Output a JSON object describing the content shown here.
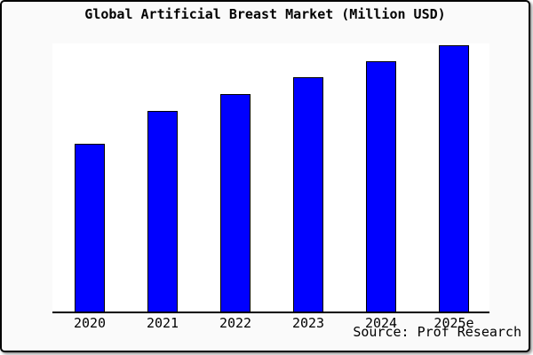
{
  "title": "Global Artificial Breast Market (Million USD)",
  "source_text": "Source: Prof Research",
  "colors": {
    "bar_fill": "#0000FF",
    "bar_border": "#000000",
    "page_background": "#FAFAFA",
    "plot_background": "#FFFFFF",
    "axis": "#000000",
    "frame_border": "#000000",
    "text": "#000000"
  },
  "chart_data": {
    "type": "bar",
    "title": "Global Artificial Breast Market (Million USD)",
    "categories": [
      "2020",
      "2021",
      "2022",
      "2023",
      "2024",
      "2025e"
    ],
    "values": [
      63,
      75.3,
      81.7,
      88,
      94,
      100
    ],
    "units": "relative bar height, indexed to 2025e = 100 (y-axis not labeled in chart)",
    "xlabel": "",
    "ylabel": "",
    "ylim": [
      0,
      100.7
    ],
    "grid": false,
    "legend": false,
    "y_axis_shown": false,
    "annotation": "Source: Prof Research",
    "bar_color": "#0000FF"
  }
}
